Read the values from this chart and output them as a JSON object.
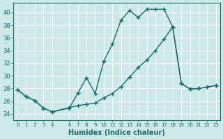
{
  "title": "",
  "xlabel": "Humidex (Indice chaleur)",
  "background_color": "#cce8e8",
  "grid_color": "#b0d4d4",
  "line_color": "#1a6b6b",
  "xlim": [
    -0.5,
    23.5
  ],
  "ylim": [
    23.0,
    41.5
  ],
  "xticks": [
    0,
    1,
    2,
    3,
    4,
    6,
    7,
    8,
    9,
    10,
    11,
    12,
    13,
    14,
    15,
    16,
    17,
    18,
    19,
    20,
    21,
    22,
    23
  ],
  "xtick_labels": [
    "0",
    "1",
    "2",
    "3",
    "4",
    "6",
    "7",
    "8",
    "9",
    "10",
    "11",
    "12",
    "13",
    "14",
    "15",
    "16",
    "17",
    "18",
    "19",
    "20",
    "21",
    "22",
    "23"
  ],
  "yticks": [
    24,
    26,
    28,
    30,
    32,
    34,
    36,
    38,
    40
  ],
  "line1_x": [
    0,
    1,
    2,
    3,
    4,
    6,
    7,
    8,
    9,
    10,
    11,
    12,
    13,
    14,
    15,
    16,
    17,
    18,
    19,
    20,
    21,
    22,
    23
  ],
  "line1_y": [
    27.8,
    26.7,
    26.1,
    24.9,
    24.3,
    24.9,
    27.3,
    29.7,
    27.2,
    32.3,
    35.0,
    38.8,
    40.3,
    39.2,
    40.5,
    40.5,
    40.5,
    37.7,
    28.8,
    27.9,
    28.0,
    28.2,
    28.5
  ],
  "line2_x": [
    0,
    1,
    2,
    3,
    4,
    6,
    7,
    8,
    9,
    10,
    11,
    12,
    13,
    14,
    15,
    16,
    17,
    18,
    19,
    20,
    21,
    22,
    23
  ],
  "line2_y": [
    27.8,
    26.7,
    26.1,
    24.9,
    24.3,
    25.0,
    25.3,
    25.5,
    25.7,
    26.5,
    27.2,
    28.3,
    29.8,
    31.3,
    32.5,
    34.0,
    35.8,
    37.7,
    28.8,
    27.9,
    28.0,
    28.2,
    28.5
  ]
}
